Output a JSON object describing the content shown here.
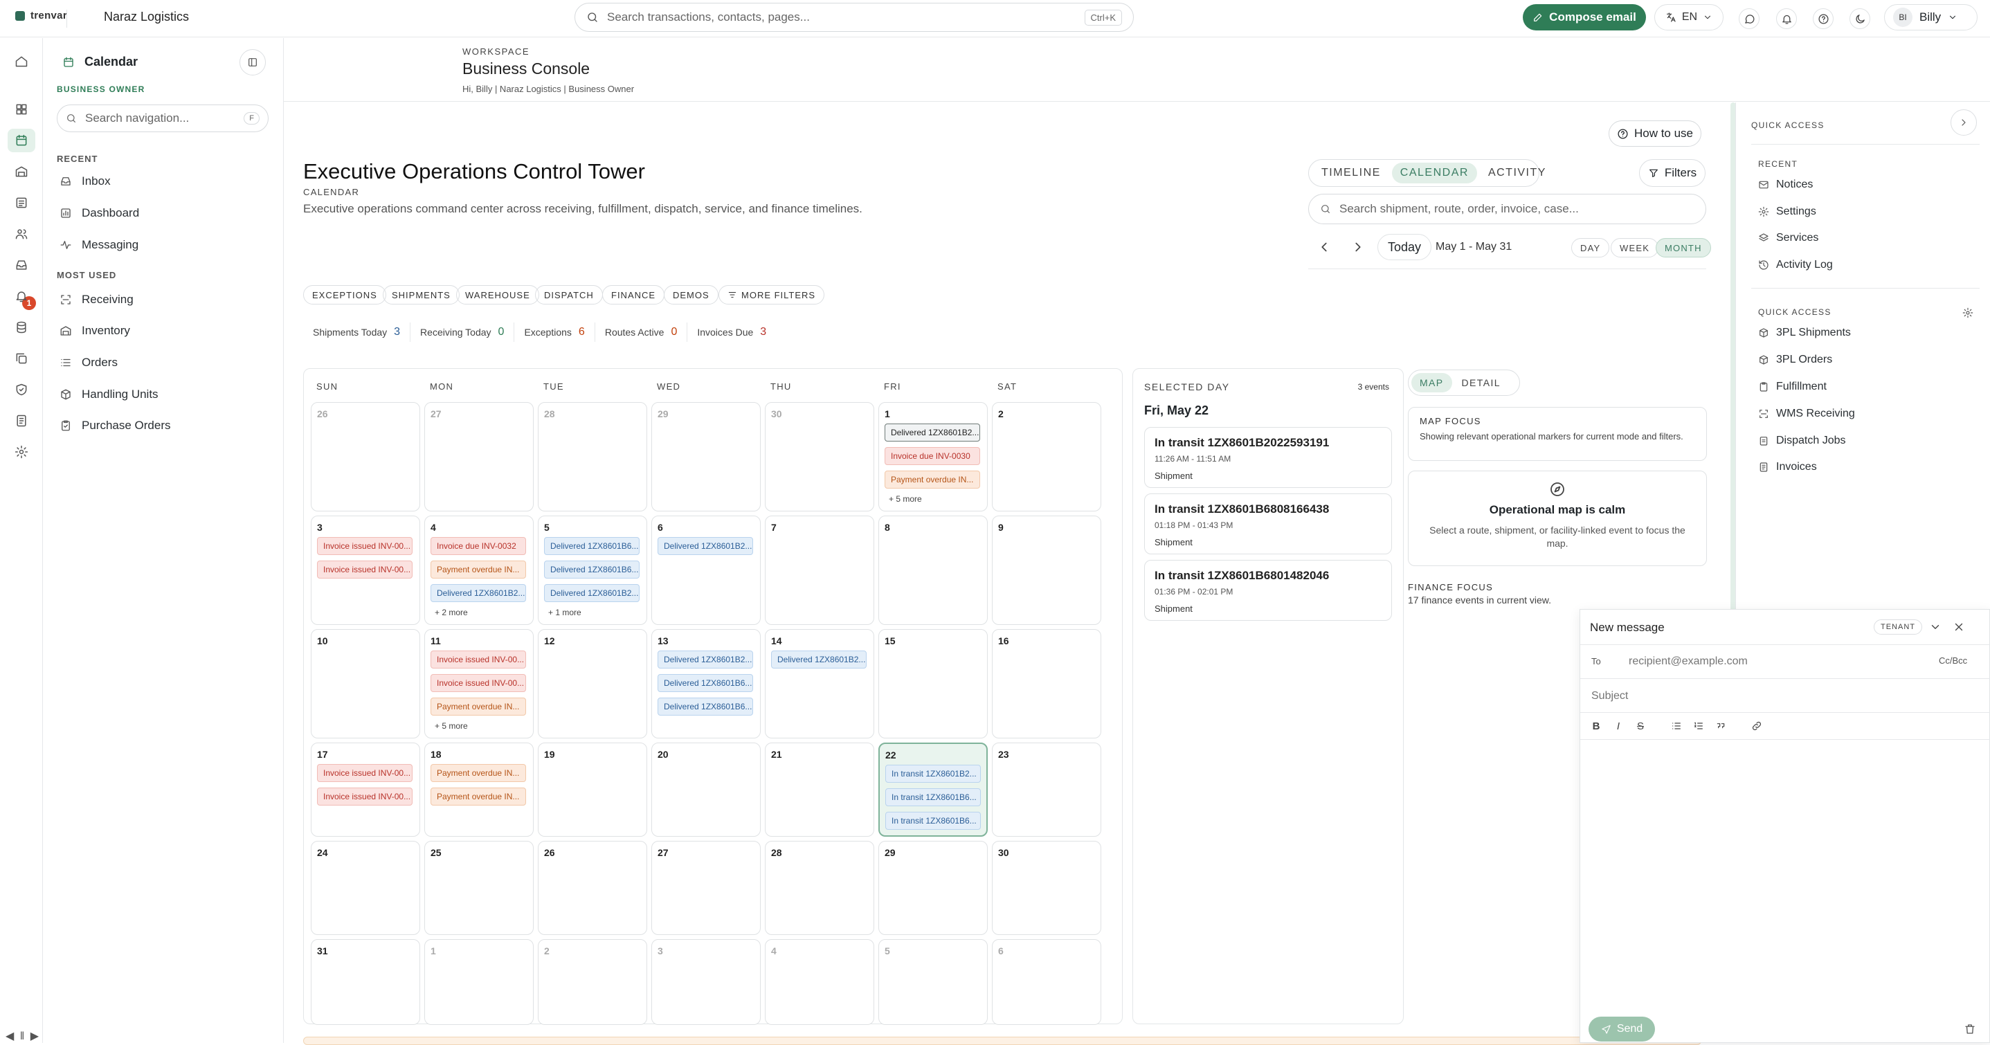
{
  "topbar": {
    "brand": "trenvar",
    "company": "Naraz Logistics",
    "search_placeholder": "Search transactions, contacts, pages...",
    "search_shortcut": "Ctrl+K",
    "compose_label": "Compose email",
    "lang": "EN",
    "user_initials": "BI",
    "user_name": "Billy"
  },
  "sidebar": {
    "title": "Calendar",
    "role": "BUSINESS OWNER",
    "search_placeholder": "Search navigation...",
    "search_shortcut": "F",
    "recent_label": "RECENT",
    "recent": [
      "Inbox",
      "Dashboard",
      "Messaging"
    ],
    "most_used_label": "MOST USED",
    "most_used": [
      "Receiving",
      "Inventory",
      "Orders",
      "Handling Units",
      "Purchase Orders"
    ]
  },
  "rail": {
    "badge": "1",
    "controls": "◀ ‖ ▶"
  },
  "workspace": {
    "label": "WORKSPACE",
    "title": "Business Console",
    "subtitle": "Hi, Billy | Naraz Logistics | Business Owner"
  },
  "main": {
    "howto": "How to use",
    "title": "Executive Operations Control Tower",
    "kicker": "CALENDAR",
    "description": "Executive operations command center across receiving, fulfillment, dispatch, service, and finance timelines.",
    "view_tabs": [
      "TIMELINE",
      "CALENDAR",
      "ACTIVITY"
    ],
    "filters": "Filters",
    "calendar_search_placeholder": "Search shipment, route, order, invoice, case...",
    "today": "Today",
    "range": "May 1 - May 31",
    "range_tabs": [
      "DAY",
      "WEEK",
      "MONTH"
    ],
    "chips": [
      "EXCEPTIONS",
      "SHIPMENTS",
      "WAREHOUSE",
      "DISPATCH",
      "FINANCE",
      "DEMOS",
      "MORE FILTERS"
    ],
    "stats": [
      {
        "label": "Shipments Today",
        "value": "3",
        "color": "#2b5e97"
      },
      {
        "label": "Receiving Today",
        "value": "0",
        "color": "#2f7d57"
      },
      {
        "label": "Exceptions",
        "value": "6",
        "color": "#c2410c"
      },
      {
        "label": "Routes Active",
        "value": "0",
        "color": "#c2410c"
      },
      {
        "label": "Invoices Due",
        "value": "3",
        "color": "#b8322a"
      }
    ]
  },
  "calendar": {
    "dow": [
      "SUN",
      "MON",
      "TUE",
      "WED",
      "THU",
      "FRI",
      "SAT"
    ],
    "days": [
      {
        "n": "26",
        "out": true
      },
      {
        "n": "27",
        "out": true
      },
      {
        "n": "28",
        "out": true
      },
      {
        "n": "29",
        "out": true
      },
      {
        "n": "30",
        "out": true
      },
      {
        "n": "1",
        "events": [
          {
            "t": "Delivered 1ZX8601B2...",
            "c": "dark"
          },
          {
            "t": "Invoice due INV-0030",
            "c": "red"
          },
          {
            "t": "Payment overdue IN...",
            "c": "orange"
          }
        ],
        "more": "+ 5 more"
      },
      {
        "n": "2"
      },
      {
        "n": "3",
        "events": [
          {
            "t": "Invoice issued INV-00...",
            "c": "red"
          },
          {
            "t": "Invoice issued INV-00...",
            "c": "red"
          }
        ]
      },
      {
        "n": "4",
        "events": [
          {
            "t": "Invoice due INV-0032",
            "c": "red"
          },
          {
            "t": "Payment overdue IN...",
            "c": "orange"
          },
          {
            "t": "Delivered 1ZX8601B2...",
            "c": "blue"
          }
        ],
        "more": "+ 2 more"
      },
      {
        "n": "5",
        "events": [
          {
            "t": "Delivered 1ZX8601B6...",
            "c": "blue"
          },
          {
            "t": "Delivered 1ZX8601B6...",
            "c": "blue"
          },
          {
            "t": "Delivered 1ZX8601B2...",
            "c": "blue"
          }
        ],
        "more": "+ 1 more"
      },
      {
        "n": "6",
        "events": [
          {
            "t": "Delivered 1ZX8601B2...",
            "c": "blue"
          }
        ]
      },
      {
        "n": "7"
      },
      {
        "n": "8"
      },
      {
        "n": "9"
      },
      {
        "n": "10"
      },
      {
        "n": "11",
        "events": [
          {
            "t": "Invoice issued INV-00...",
            "c": "red"
          },
          {
            "t": "Invoice issued INV-00...",
            "c": "red"
          },
          {
            "t": "Payment overdue IN...",
            "c": "orange"
          }
        ],
        "more": "+ 5 more"
      },
      {
        "n": "12"
      },
      {
        "n": "13",
        "events": [
          {
            "t": "Delivered 1ZX8601B2...",
            "c": "blue"
          },
          {
            "t": "Delivered 1ZX8601B6...",
            "c": "blue"
          },
          {
            "t": "Delivered 1ZX8601B6...",
            "c": "blue"
          }
        ]
      },
      {
        "n": "14",
        "events": [
          {
            "t": "Delivered 1ZX8601B2...",
            "c": "blue"
          }
        ]
      },
      {
        "n": "15"
      },
      {
        "n": "16"
      },
      {
        "n": "17",
        "events": [
          {
            "t": "Invoice issued INV-00...",
            "c": "red"
          },
          {
            "t": "Invoice issued INV-00...",
            "c": "red"
          }
        ]
      },
      {
        "n": "18",
        "events": [
          {
            "t": "Payment overdue IN...",
            "c": "orange"
          },
          {
            "t": "Payment overdue IN...",
            "c": "orange"
          }
        ]
      },
      {
        "n": "19"
      },
      {
        "n": "20"
      },
      {
        "n": "21"
      },
      {
        "n": "22",
        "sel": true,
        "events": [
          {
            "t": "In transit 1ZX8601B2...",
            "c": "blue"
          },
          {
            "t": "In transit 1ZX8601B6...",
            "c": "blue"
          },
          {
            "t": "In transit 1ZX8601B6...",
            "c": "blue"
          }
        ]
      },
      {
        "n": "23"
      },
      {
        "n": "24"
      },
      {
        "n": "25"
      },
      {
        "n": "26"
      },
      {
        "n": "27"
      },
      {
        "n": "28"
      },
      {
        "n": "29"
      },
      {
        "n": "30"
      },
      {
        "n": "31"
      },
      {
        "n": "1",
        "out": true
      },
      {
        "n": "2",
        "out": true
      },
      {
        "n": "3",
        "out": true
      },
      {
        "n": "4",
        "out": true
      },
      {
        "n": "5",
        "out": true
      },
      {
        "n": "6",
        "out": true
      }
    ]
  },
  "selected": {
    "kicker": "SELECTED DAY",
    "count": "3 events",
    "date": "Fri, May 22",
    "items": [
      {
        "title": "In transit 1ZX8601B2022593191",
        "time": "11:26 AM - 11:51 AM",
        "kind": "Shipment"
      },
      {
        "title": "In transit 1ZX8601B6808166438",
        "time": "01:18 PM - 01:43 PM",
        "kind": "Shipment"
      },
      {
        "title": "In transit 1ZX8601B6801482046",
        "time": "01:36 PM - 02:01 PM",
        "kind": "Shipment"
      }
    ]
  },
  "map": {
    "tabs": [
      "MAP",
      "DETAIL"
    ],
    "focus_title": "MAP FOCUS",
    "focus_desc": "Showing relevant operational markers for current mode and filters.",
    "calm_title": "Operational map is calm",
    "calm_desc": "Select a route, shipment, or facility-linked event to focus the map.",
    "finance_title": "FINANCE FOCUS",
    "finance_desc": "17 finance events in current view."
  },
  "quick": {
    "title": "QUICK ACCESS",
    "recent_label": "RECENT",
    "recent": [
      "Notices",
      "Settings",
      "Services",
      "Activity Log"
    ],
    "qa_label": "QUICK ACCESS",
    "items": [
      "3PL Shipments",
      "3PL Orders",
      "Fulfillment",
      "WMS Receiving",
      "Dispatch Jobs",
      "Invoices"
    ]
  },
  "compose": {
    "title": "New message",
    "tenant": "TENANT",
    "to_label": "To",
    "to_placeholder": "recipient@example.com",
    "ccbcc": "Cc/Bcc",
    "subject_placeholder": "Subject",
    "send": "Send"
  }
}
